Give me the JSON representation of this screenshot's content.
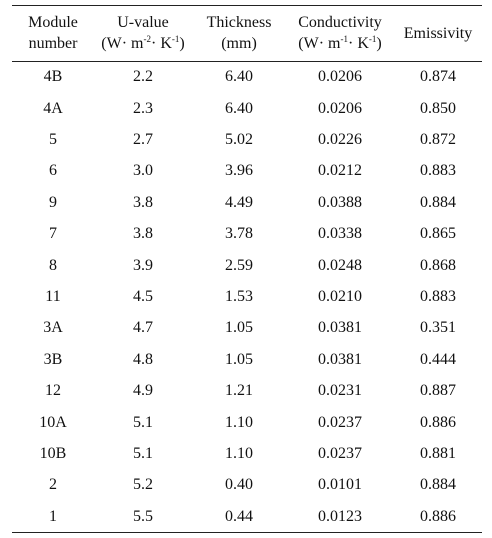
{
  "table": {
    "columns": [
      {
        "lines": [
          [
            "Module"
          ],
          [
            "number"
          ]
        ]
      },
      {
        "lines": [
          [
            "U-value"
          ],
          [
            "(W· m",
            "-2",
            "· K",
            "-1",
            ")"
          ]
        ]
      },
      {
        "lines": [
          [
            "Thickness"
          ],
          [
            "(mm)"
          ]
        ]
      },
      {
        "lines": [
          [
            "Conductivity"
          ],
          [
            "(W· m",
            "-1",
            "· K",
            "-1",
            ")"
          ]
        ]
      },
      {
        "lines": [
          [
            "Emissivity"
          ]
        ]
      }
    ],
    "rows": [
      [
        "4B",
        "2.2",
        "6.40",
        "0.0206",
        "0.874"
      ],
      [
        "4A",
        "2.3",
        "6.40",
        "0.0206",
        "0.850"
      ],
      [
        "5",
        "2.7",
        "5.02",
        "0.0226",
        "0.872"
      ],
      [
        "6",
        "3.0",
        "3.96",
        "0.0212",
        "0.883"
      ],
      [
        "9",
        "3.8",
        "4.49",
        "0.0388",
        "0.884"
      ],
      [
        "7",
        "3.8",
        "3.78",
        "0.0338",
        "0.865"
      ],
      [
        "8",
        "3.9",
        "2.59",
        "0.0248",
        "0.868"
      ],
      [
        "11",
        "4.5",
        "1.53",
        "0.0210",
        "0.883"
      ],
      [
        "3A",
        "4.7",
        "1.05",
        "0.0381",
        "0.351"
      ],
      [
        "3B",
        "4.8",
        "1.05",
        "0.0381",
        "0.444"
      ],
      [
        "12",
        "4.9",
        "1.21",
        "0.0231",
        "0.887"
      ],
      [
        "10A",
        "5.1",
        "1.10",
        "0.0237",
        "0.886"
      ],
      [
        "10B",
        "5.1",
        "1.10",
        "0.0237",
        "0.881"
      ],
      [
        "2",
        "5.2",
        "0.40",
        "0.0101",
        "0.884"
      ],
      [
        "1",
        "5.5",
        "0.44",
        "0.0123",
        "0.886"
      ]
    ]
  }
}
